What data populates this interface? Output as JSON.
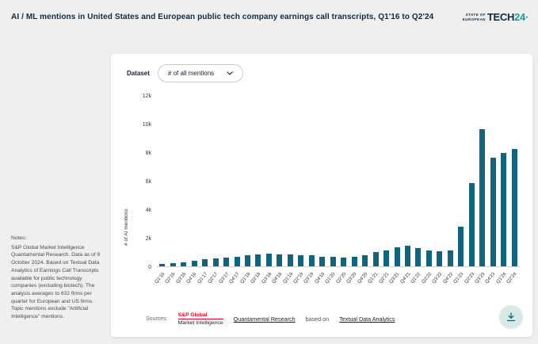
{
  "header": {
    "title": "AI / ML mentions in United States and European public tech company earnings call transcripts, Q1'16 to Q2'24",
    "logo": {
      "line1": "STATE OF",
      "line2": "EUROPEAN",
      "word": "TECH",
      "year": "24·"
    }
  },
  "controls": {
    "dataset_label": "Dataset",
    "dataset_value": "# of all mentions"
  },
  "notes": {
    "label": "Notes:",
    "body": "S&P Global Market Intelligence Quantamental Research. Data as of 9 October 2024. Based on Textual Data Analytics of Earnings Call Transcripts available for public technology companies (excluding biotech). The analysis averages to 632 firms per quarter for European and US firms. Topic mentions exclude \"Artificial Intelligence\" mentions."
  },
  "sources": {
    "label": "Sources:",
    "sp_name": "S&P Global",
    "sp_sub": "Market Intelligence",
    "link1": "Quantamental Research",
    "based_on": "based on",
    "link2": "Textual Data Analytics"
  },
  "colors": {
    "bar": "#11647b",
    "accent": "#14a598",
    "navy": "#0d2b45",
    "sp_red": "#e4002b",
    "download_bg": "#d8e8e6",
    "background": "#efefef"
  },
  "chart_data": {
    "type": "bar",
    "title": "AI / ML mentions in United States and European public tech company earnings call transcripts, Q1'16 to Q2'24",
    "xlabel": "",
    "ylabel": "# of AI mentions",
    "ylim": [
      0,
      12000
    ],
    "yticks": [
      "12k",
      "10k",
      "8k",
      "6k",
      "4k",
      "2k",
      "0"
    ],
    "grid": false,
    "legend": "none",
    "categories": [
      "Q1'16",
      "Q2'16",
      "Q3'16",
      "Q4'16",
      "Q1'17",
      "Q2'17",
      "Q3'17",
      "Q4'17",
      "Q1'18",
      "Q2'18",
      "Q3'18",
      "Q4'18",
      "Q1'19",
      "Q2'19",
      "Q3'19",
      "Q4'19",
      "Q1'20",
      "Q2'20",
      "Q3'20",
      "Q4'20",
      "Q1'21",
      "Q2'21",
      "Q3'21",
      "Q4'21",
      "Q1'22",
      "Q2'22",
      "Q3'22",
      "Q4'22",
      "Q1'23",
      "Q2'23",
      "Q3'23",
      "Q4'23",
      "Q1'24",
      "Q2'24"
    ],
    "values": [
      150,
      220,
      300,
      380,
      500,
      560,
      620,
      680,
      800,
      870,
      900,
      820,
      860,
      800,
      760,
      700,
      650,
      620,
      700,
      780,
      1000,
      1150,
      1350,
      1450,
      1300,
      1150,
      1050,
      1100,
      2800,
      5900,
      9700,
      7700,
      8000,
      8300
    ]
  }
}
